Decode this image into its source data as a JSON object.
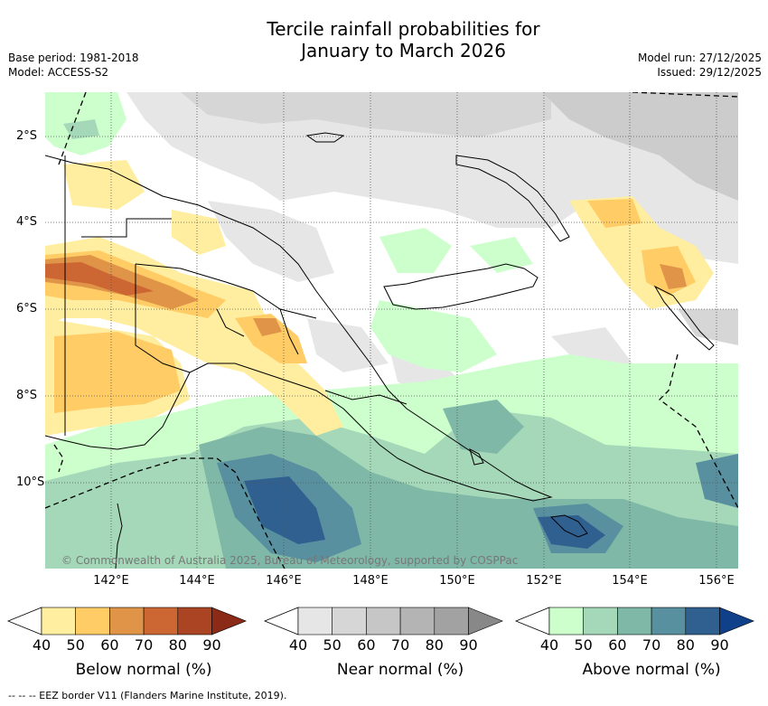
{
  "header": {
    "title_line1": "Tercile rainfall probabilities for",
    "title_line2": "January to March 2026",
    "base_period": "Base period: 1981-2018",
    "model": "Model: ACCESS-S2",
    "model_run": "Model run: 27/12/2025",
    "issued": "Issued: 29/12/2025"
  },
  "map": {
    "lon_labels": [
      "142°E",
      "144°E",
      "146°E",
      "148°E",
      "150°E",
      "152°E",
      "154°E",
      "156°E"
    ],
    "lat_labels": [
      "2°S",
      "4°S",
      "6°S",
      "8°S",
      "10°S"
    ],
    "copyright": "© Commonwealth of Australia 2025, Bureau of Meteorology, supported by COSPPac"
  },
  "colorbars": [
    {
      "title": "Below normal (%)",
      "ticks": [
        "40",
        "50",
        "60",
        "70",
        "80",
        "90"
      ],
      "colors": [
        "#ffeea0",
        "#ffcc66",
        "#e09448",
        "#cc6633",
        "#aa4422",
        "#8b2a16"
      ]
    },
    {
      "title": "Near normal (%)",
      "ticks": [
        "40",
        "50",
        "60",
        "70",
        "80",
        "90"
      ],
      "colors": [
        "#e6e6e6",
        "#d6d6d6",
        "#c6c6c6",
        "#b4b4b4",
        "#a2a2a2",
        "#888888"
      ]
    },
    {
      "title": "Above normal (%)",
      "ticks": [
        "40",
        "50",
        "60",
        "70",
        "80",
        "90"
      ],
      "colors": [
        "#ccffcc",
        "#a4d8b8",
        "#80b8a8",
        "#5890a0",
        "#306090",
        "#10408a"
      ]
    }
  ],
  "footer": {
    "eez_note": "--  --  -- EEZ border V11 (Flanders Marine Institute, 2019)."
  }
}
